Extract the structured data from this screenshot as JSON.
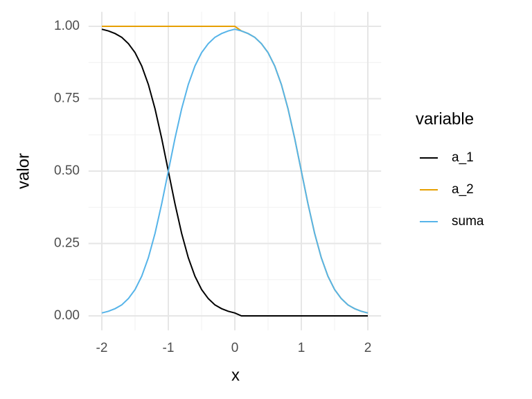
{
  "chart_data": {
    "type": "line",
    "x_label": "x",
    "y_label": "valor",
    "legend_title": "variable",
    "x": [
      -2,
      -1.9,
      -1.8,
      -1.7,
      -1.6,
      -1.5,
      -1.4,
      -1.3,
      -1.2,
      -1.1,
      -1,
      -0.9,
      -0.8,
      -0.7,
      -0.6,
      -0.5,
      -0.4,
      -0.3,
      -0.2,
      -0.1,
      0,
      0.1,
      0.2,
      0.3,
      0.4,
      0.5,
      0.6,
      0.7,
      0.8,
      0.9,
      1,
      1.1,
      1.2,
      1.3,
      1.4,
      1.5,
      1.6,
      1.7,
      1.8,
      1.9,
      2
    ],
    "series": [
      {
        "name": "a_1",
        "color": "#000000",
        "values": [
          0.99,
          0.984,
          0.975,
          0.962,
          0.94,
          0.909,
          0.863,
          0.799,
          0.715,
          0.613,
          0.5,
          0.387,
          0.285,
          0.201,
          0.137,
          0.091,
          0.06,
          0.038,
          0.025,
          0.016,
          0.01,
          0,
          0,
          0,
          0,
          0,
          0,
          0,
          0,
          0,
          0,
          0,
          0,
          0,
          0,
          0,
          0,
          0,
          0,
          0,
          0
        ]
      },
      {
        "name": "a_2",
        "color": "#E69F00",
        "values": [
          1,
          1,
          1,
          1,
          1,
          1,
          1,
          1,
          1,
          1,
          1,
          1,
          1,
          1,
          1,
          1,
          1,
          1,
          1,
          1,
          1,
          0.984,
          0.975,
          0.962,
          0.94,
          0.909,
          0.863,
          0.799,
          0.715,
          0.613,
          0.5,
          0.387,
          0.285,
          0.201,
          0.137,
          0.091,
          0.06,
          0.038,
          0.025,
          0.016,
          0.01
        ]
      },
      {
        "name": "suma",
        "color": "#56B4E9",
        "values": [
          0.01,
          0.016,
          0.025,
          0.038,
          0.06,
          0.091,
          0.137,
          0.201,
          0.285,
          0.387,
          0.5,
          0.613,
          0.715,
          0.799,
          0.863,
          0.909,
          0.94,
          0.962,
          0.975,
          0.984,
          0.99,
          0.984,
          0.975,
          0.962,
          0.94,
          0.909,
          0.863,
          0.799,
          0.715,
          0.613,
          0.5,
          0.387,
          0.285,
          0.201,
          0.137,
          0.091,
          0.06,
          0.038,
          0.025,
          0.016,
          0.01
        ]
      }
    ],
    "xlim": [
      -2.2,
      2.2
    ],
    "ylim": [
      -0.05,
      1.05
    ],
    "xticks": [
      -2,
      -1,
      0,
      1,
      2
    ],
    "yticks": [
      {
        "value": 0,
        "label": "0.00"
      },
      {
        "value": 0.25,
        "label": "0.25"
      },
      {
        "value": 0.5,
        "label": "0.50"
      },
      {
        "value": 0.75,
        "label": "0.75"
      },
      {
        "value": 1,
        "label": "1.00"
      }
    ],
    "grid": true,
    "legend_position": "right"
  }
}
